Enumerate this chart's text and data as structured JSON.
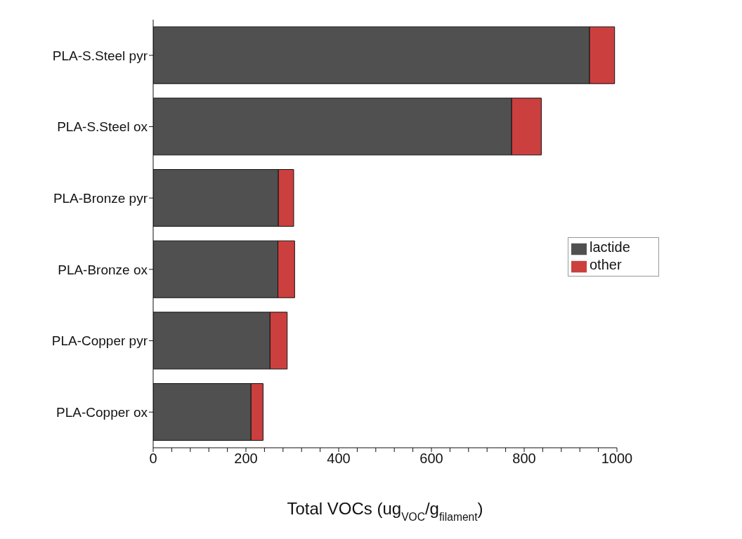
{
  "chart_data": {
    "type": "bar",
    "orientation": "horizontal",
    "stacked": true,
    "categories": [
      "PLA-S.Steel pyr",
      "PLA-S.Steel ox",
      "PLA-Bronze pyr",
      "PLA-Bronze ox",
      "PLA-Copper pyr",
      "PLA-Copper ox"
    ],
    "series": [
      {
        "name": "lactide",
        "color": "#505050",
        "values": [
          941,
          773,
          270,
          269,
          252,
          211
        ]
      },
      {
        "name": "other",
        "color": "#cc3f3f",
        "values": [
          54,
          64,
          33,
          36,
          37,
          26
        ]
      }
    ],
    "xlabel": "Total VOCs (ug$_{VOC}$/g$_{filament}$)",
    "xlim": [
      0,
      1000
    ],
    "xticks": [
      0,
      {
        "value": 40,
        "label": null
      },
      {
        "value": 80,
        "label": null
      },
      {
        "value": 120,
        "label": null
      },
      {
        "value": 160,
        "label": null
      },
      200,
      {
        "value": 240,
        "label": null
      },
      {
        "value": 280,
        "label": null
      },
      {
        "value": 320,
        "label": null
      },
      {
        "value": 360,
        "label": null
      },
      400,
      {
        "value": 440,
        "label": null
      },
      {
        "value": 480,
        "label": null
      },
      {
        "value": 520,
        "label": null
      },
      {
        "value": 560,
        "label": null
      },
      600,
      {
        "value": 640,
        "label": null
      },
      {
        "value": 680,
        "label": null
      },
      {
        "value": 720,
        "label": null
      },
      {
        "value": 760,
        "label": null
      },
      800,
      {
        "value": 840,
        "label": null
      },
      {
        "value": 880,
        "label": null
      },
      {
        "value": 920,
        "label": null
      },
      {
        "value": 960,
        "label": null
      },
      1000
    ],
    "grid": false,
    "legend": "right"
  }
}
